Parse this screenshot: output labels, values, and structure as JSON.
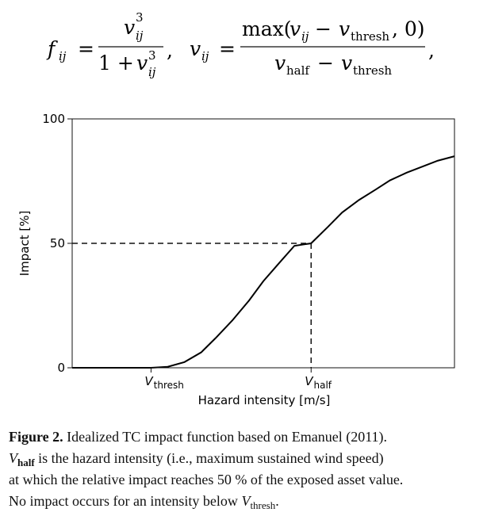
{
  "formula": {
    "f_symbol": "f",
    "ij": "ij",
    "equals": "=",
    "v_symbol": "v",
    "cubed": "3",
    "one_plus": "1 +",
    "comma": ",",
    "max_open": "max(",
    "minus": "−",
    "thresh": "thresh",
    "zero_close": ", 0)",
    "half": "half"
  },
  "chart_data": {
    "type": "line",
    "title": "",
    "xlabel": "Hazard intensity [m/s]",
    "ylabel": "Impact [%]",
    "ylim": [
      0,
      100
    ],
    "yticks": [
      0,
      50,
      100
    ],
    "xlim": [
      0,
      1.6
    ],
    "x_axis_markers": [
      {
        "label": "V",
        "subscript": "thresh",
        "x": 0.33
      },
      {
        "label": "V",
        "subscript": "half",
        "x": 1.0
      }
    ],
    "reference_lines": [
      {
        "type": "dashed",
        "from_axis": "y",
        "x": 1.0,
        "y": 50
      }
    ],
    "series": [
      {
        "x": [
          0.0,
          0.33,
          0.4,
          0.47,
          0.54,
          0.6,
          0.67,
          0.74,
          0.8,
          0.87,
          0.93,
          1.0,
          1.07,
          1.13,
          1.2,
          1.27,
          1.33,
          1.4,
          1.47,
          1.53,
          1.6
        ],
        "y": [
          0.0,
          0.0,
          0.4,
          2.3,
          6.2,
          11.9,
          19.0,
          27.0,
          34.8,
          42.5,
          49.0,
          50.0,
          56.6,
          62.4,
          67.4,
          71.6,
          75.3,
          78.4,
          81.0,
          83.2,
          85.0
        ]
      }
    ],
    "grid": false,
    "legend": "none"
  },
  "caption": {
    "label": "Figure 2.",
    "line1": " Idealized TC impact function based on Emanuel (2011).",
    "v": "V",
    "half": "half",
    "line2": " is the hazard intensity (i.e., maximum sustained wind speed)",
    "line3": "at which the relative impact reaches 50 % of the exposed asset value.",
    "line4": "No impact occurs for an intensity below ",
    "thresh": "thresh",
    "end": "."
  }
}
